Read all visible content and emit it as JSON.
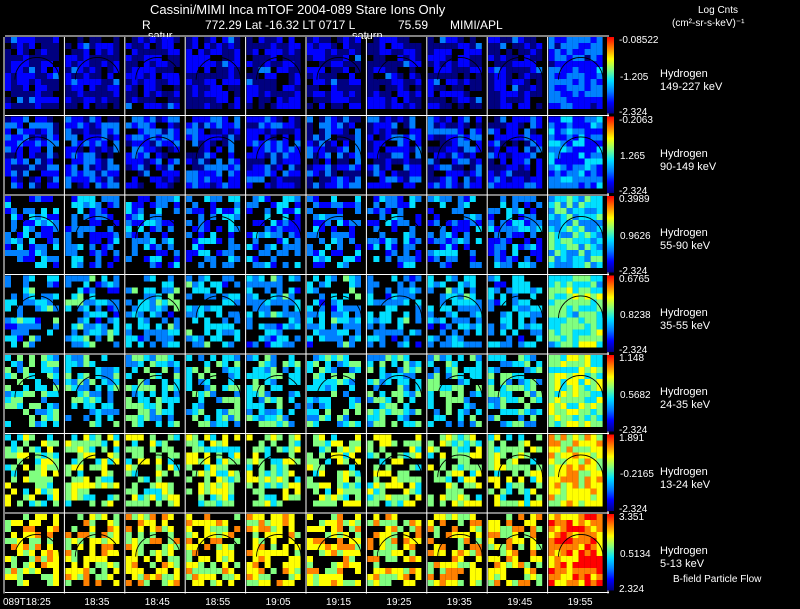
{
  "header": {
    "title": "Cassini/MIMI Inca mTOF  2004-089   Stare   Ions Only",
    "coords_r_label": "R",
    "coords_values": "772.29 Lat -16.32 LT 0717 L",
    "coords_l_value": "75.59",
    "coords_source": "MIMI/APL",
    "saturn_labels": [
      "satur",
      "saturn"
    ]
  },
  "units": {
    "line1": "Log Cnts",
    "line2": "(cm²-sr-s-keV)⁻¹"
  },
  "footer": {
    "flow_label": "B-field Particle Flow",
    "time_labels": [
      "089T18:25",
      "18:35",
      "18:45",
      "18:55",
      "19:05",
      "19:15",
      "19:25",
      "19:35",
      "19:45",
      "19:55"
    ]
  },
  "chart_data": {
    "type": "heatmap",
    "title": "Cassini/MIMI Inca mTOF  2004-089   Stare   Ions Only",
    "columns": [
      "089T18:25",
      "18:35",
      "18:45",
      "18:55",
      "19:05",
      "19:15",
      "19:25",
      "19:35",
      "19:45",
      "19:55"
    ],
    "rows": [
      {
        "species": "Hydrogen",
        "energy": "149-227 keV",
        "max": "-0.08522",
        "mid": "-1.205",
        "min": "-2.324",
        "level": 0.12
      },
      {
        "species": "Hydrogen",
        "energy": "90-149 keV",
        "max": "-0.2063",
        "mid": "1.265",
        "min": "-2.324",
        "level": 0.18
      },
      {
        "species": "Hydrogen",
        "energy": "55-90 keV",
        "max": "0.3989",
        "mid": "0.9626",
        "min": "-2.324",
        "level": 0.3
      },
      {
        "species": "Hydrogen",
        "energy": "35-55 keV",
        "max": "0.6765",
        "mid": "0.8238",
        "min": "-2.324",
        "level": 0.38
      },
      {
        "species": "Hydrogen",
        "energy": "24-35 keV",
        "max": "1.148",
        "mid": "0.5682",
        "min": "-2.324",
        "level": 0.45
      },
      {
        "species": "Hydrogen",
        "energy": "13-24 keV",
        "max": "1.891",
        "mid": "-0.2165",
        "min": "-2.324",
        "level": 0.58
      },
      {
        "species": "Hydrogen",
        "energy": "5-13 keV",
        "max": "3.351",
        "mid": "0.5134",
        "min": "2.324",
        "level": 0.68
      }
    ],
    "colorscale": [
      "#000080",
      "#0000ff",
      "#0080ff",
      "#00e0ff",
      "#80ff80",
      "#ffff00",
      "#ff8000",
      "#ff0000"
    ]
  }
}
